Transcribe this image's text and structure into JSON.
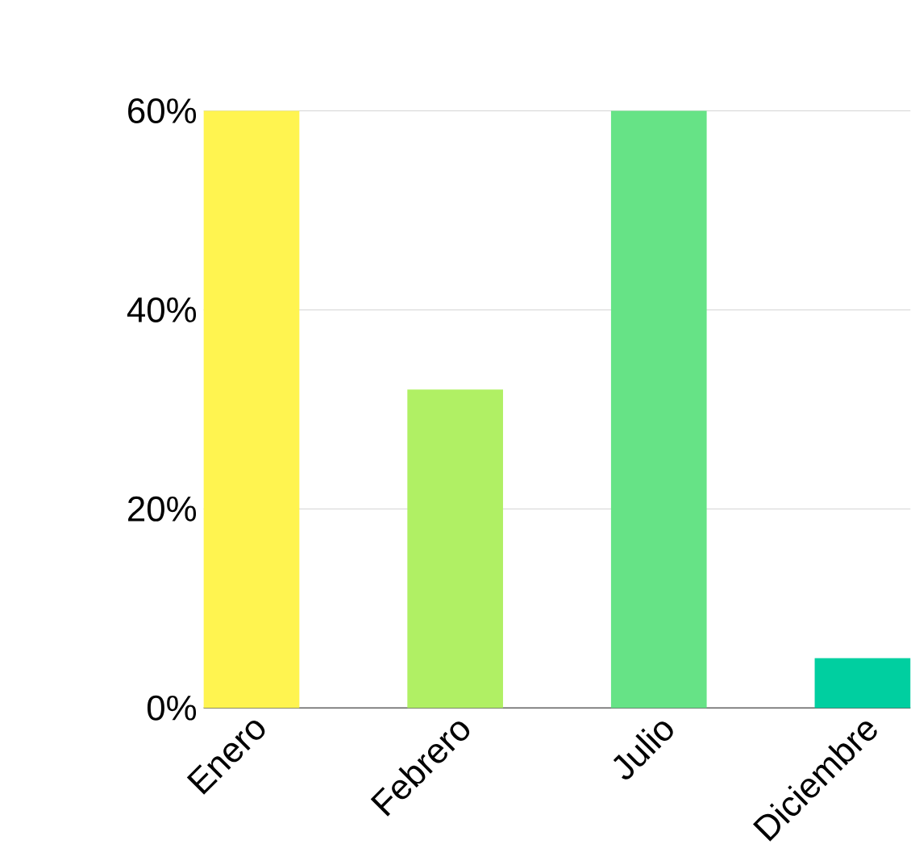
{
  "chart_data": {
    "type": "bar",
    "categories": [
      "Enero",
      "Febrero",
      "Julio",
      "Diciembre"
    ],
    "values": [
      60,
      32,
      60,
      5
    ],
    "colors": [
      "#fff450",
      "#b0f064",
      "#66e386",
      "#00cfa0"
    ],
    "ylim": [
      0,
      60
    ],
    "yticks": [
      {
        "value": 0,
        "label": "0%"
      },
      {
        "value": 20,
        "label": "20%"
      },
      {
        "value": 40,
        "label": "40%"
      },
      {
        "value": 60,
        "label": "60%"
      }
    ],
    "grid": "y"
  }
}
